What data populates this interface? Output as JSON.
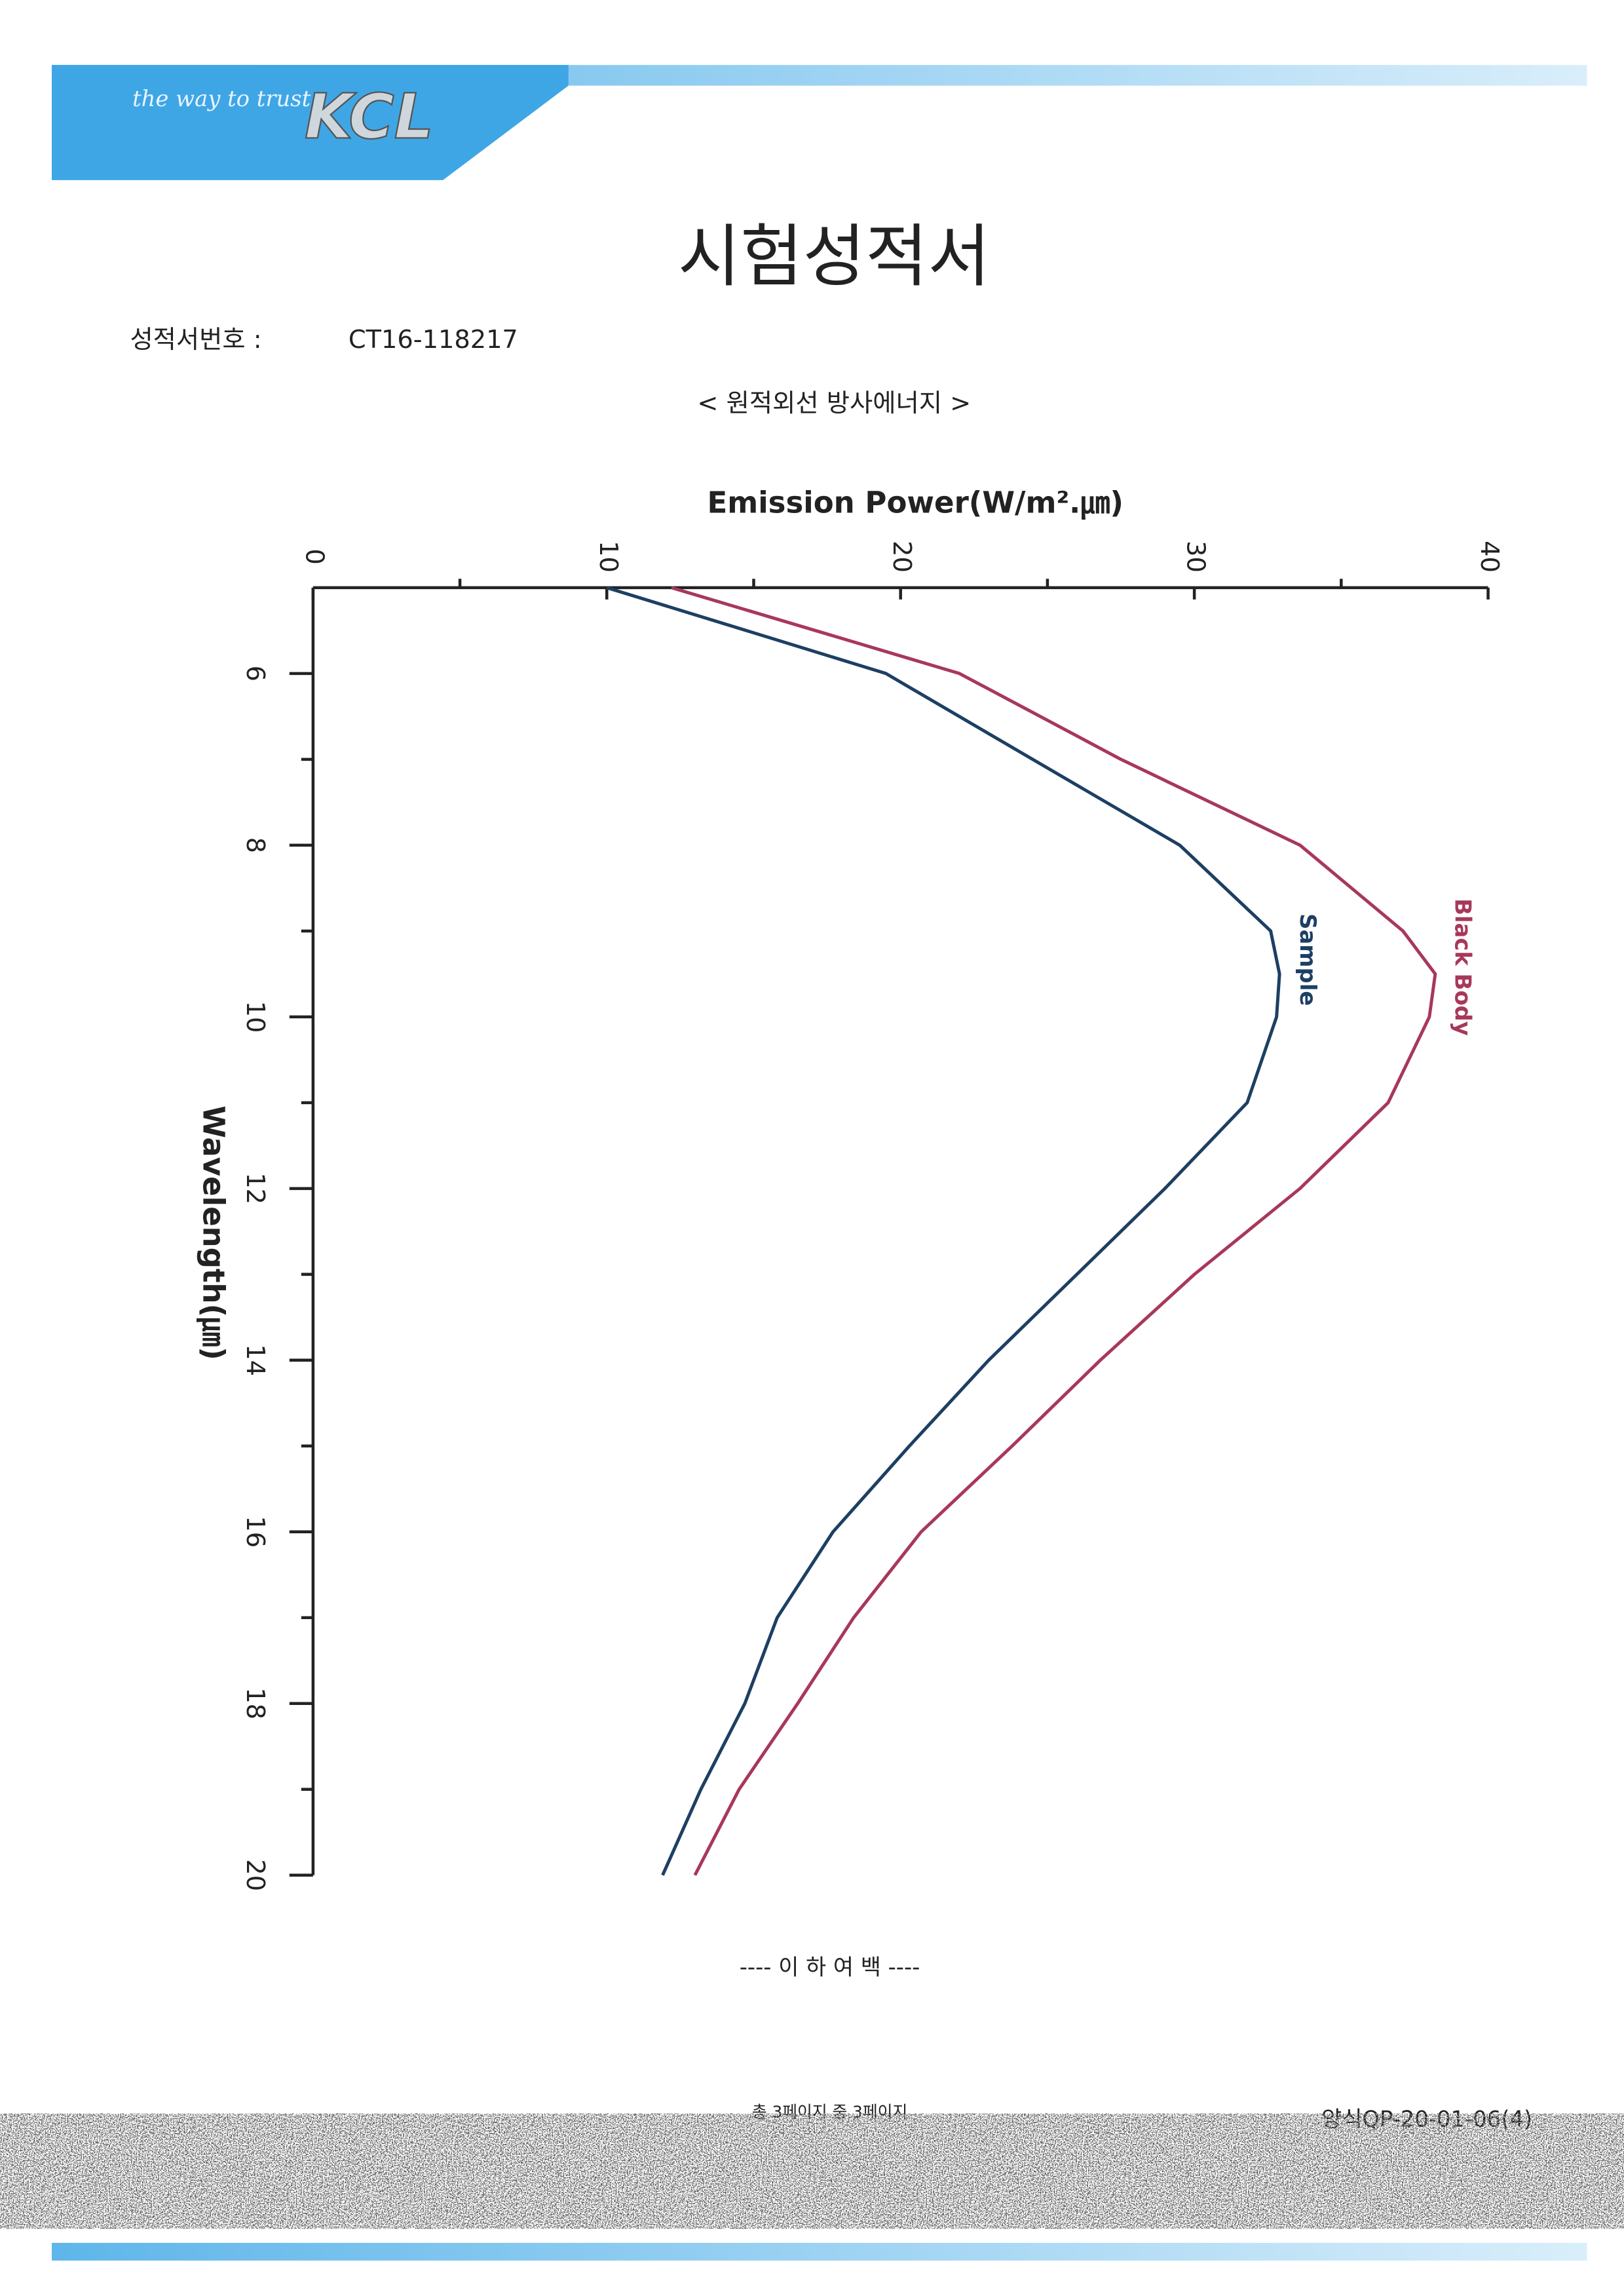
{
  "header": {
    "slogan": "the way to trust",
    "brand": "KCL"
  },
  "document": {
    "title": "시험성적서",
    "report_number_label": "성적서번호 :",
    "report_number": "CT16-118217",
    "section_title": "< 원적외선 방사에너지 >"
  },
  "chart_data": {
    "type": "line",
    "orientation": "vertical",
    "x_label": "Wavelength(㎛)",
    "y_label": "Emission Power(W/m².㎛)",
    "x": [
      5,
      6,
      7,
      8,
      9,
      9.5,
      10,
      11,
      12,
      13,
      14,
      15,
      16,
      17,
      18,
      19,
      20
    ],
    "xlim": [
      5,
      20
    ],
    "xticks": [
      6,
      8,
      10,
      12,
      14,
      16,
      18,
      20
    ],
    "xminorticks": [
      7,
      9,
      11,
      13,
      15,
      17,
      19
    ],
    "ylim": [
      0,
      40
    ],
    "yticks": [
      0,
      10,
      20,
      30,
      40
    ],
    "yminorticks": [
      5,
      15,
      25,
      35
    ],
    "series": [
      {
        "name": "Sample",
        "color": "#1d3f63",
        "values": [
          10.0,
          19.5,
          24.5,
          29.5,
          32.6,
          32.9,
          32.8,
          31.8,
          29.0,
          26.0,
          23.0,
          20.3,
          17.7,
          15.8,
          14.7,
          13.2,
          11.9
        ]
      },
      {
        "name": "Black Body",
        "color": "#a8385a",
        "values": [
          12.2,
          22.0,
          27.5,
          33.6,
          37.1,
          38.2,
          38.0,
          36.6,
          33.6,
          30.0,
          26.8,
          23.8,
          20.7,
          18.4,
          16.5,
          14.5,
          13.0
        ]
      }
    ]
  },
  "footer": {
    "end_note": "---- 이 하 여 백 ----",
    "page_info": "총 3페이지 중 3페이지",
    "form_number": "양식QP-20-01-06(4)"
  }
}
